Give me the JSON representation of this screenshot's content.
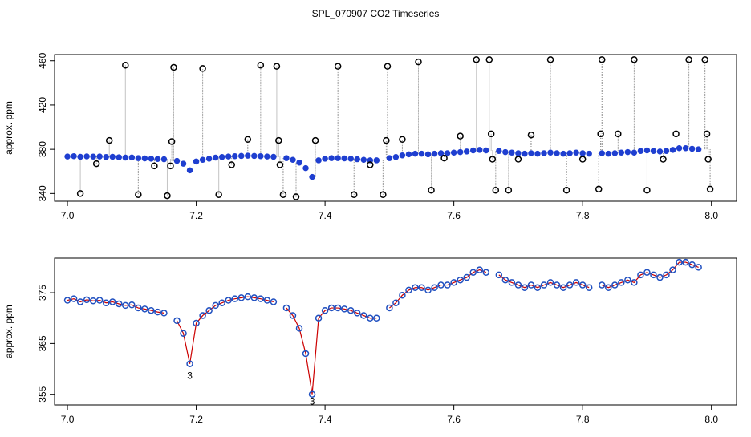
{
  "chart_data": [
    {
      "type": "scatter",
      "title": "SPL_070907  CO2 Timeseries",
      "y_label": "approx. ppm",
      "xlim": [
        6.98,
        8.039
      ],
      "ylim": [
        333,
        465.6
      ],
      "xticks": [
        {
          "value": 7.0,
          "label": "7.0"
        },
        {
          "value": 7.2,
          "label": "7.2"
        },
        {
          "value": 7.4,
          "label": "7.4"
        },
        {
          "value": 7.6,
          "label": "7.6"
        },
        {
          "value": 7.8,
          "label": "7.8"
        },
        {
          "value": 8.0,
          "label": "8.0"
        }
      ],
      "yticks": [
        340,
        380,
        420,
        460
      ],
      "series": [
        {
          "color": "#1f3fd0",
          "x": [
            7.0,
            7.01,
            7.02,
            7.03,
            7.04,
            7.05,
            7.06,
            7.07,
            7.08,
            7.09,
            7.1,
            7.11,
            7.12,
            7.13,
            7.14,
            7.15,
            7.16,
            7.17,
            7.18,
            7.19,
            7.2,
            7.21,
            7.22,
            7.23,
            7.24,
            7.25,
            7.26,
            7.27,
            7.28,
            7.29,
            7.3,
            7.31,
            7.32,
            7.33,
            7.34,
            7.35,
            7.36,
            7.37,
            7.38,
            7.39,
            7.4,
            7.41,
            7.42,
            7.43,
            7.44,
            7.45,
            7.46,
            7.47,
            7.48,
            7.49,
            7.5,
            7.51,
            7.52,
            7.53,
            7.54,
            7.55,
            7.56,
            7.57,
            7.58,
            7.59,
            7.6,
            7.61,
            7.62,
            7.63,
            7.64,
            7.65,
            7.66,
            7.67,
            7.68,
            7.69,
            7.7,
            7.71,
            7.72,
            7.73,
            7.74,
            7.75,
            7.76,
            7.77,
            7.78,
            7.79,
            7.8,
            7.81,
            7.82,
            7.83,
            7.84,
            7.85,
            7.86,
            7.87,
            7.88,
            7.89,
            7.9,
            7.91,
            7.92,
            7.93,
            7.94,
            7.95,
            7.96,
            7.97,
            7.98
          ],
          "values": [
            373.5,
            373.8,
            373.2,
            373.6,
            373.4,
            373.5,
            373.0,
            373.2,
            372.8,
            372.5,
            372.6,
            372.0,
            371.8,
            371.5,
            371.2,
            371.0,
            null,
            369.5,
            367,
            361,
            369,
            370.5,
            371.5,
            372.5,
            373,
            373.5,
            373.8,
            374,
            374.2,
            374,
            373.8,
            373.5,
            373.2,
            null,
            372,
            370.5,
            368,
            363,
            355,
            370,
            371.5,
            372,
            372,
            371.8,
            371.5,
            371,
            370.5,
            370,
            370,
            null,
            372,
            373,
            374.5,
            375.5,
            376,
            376,
            375.5,
            376,
            376.5,
            376.5,
            377,
            377.5,
            378,
            379,
            379.5,
            379,
            null,
            378.5,
            377.5,
            377,
            376.5,
            376,
            376.5,
            376,
            376.5,
            377,
            376.5,
            376,
            376.5,
            377,
            376.5,
            376,
            null,
            376.5,
            376,
            376.5,
            377,
            377.5,
            377,
            378.5,
            379,
            378.5,
            378,
            378.5,
            379.5,
            381,
            381,
            380.5,
            380
          ]
        },
        {
          "color": "#000000",
          "x": [
            7.02,
            7.045,
            7.065,
            7.09,
            7.11,
            7.135,
            7.155,
            7.16,
            7.162,
            7.165,
            7.21,
            7.235,
            7.255,
            7.28,
            7.3,
            7.325,
            7.328,
            7.33,
            7.335,
            7.355,
            7.385,
            7.42,
            7.445,
            7.47,
            7.49,
            7.495,
            7.497,
            7.52,
            7.545,
            7.565,
            7.585,
            7.61,
            7.635,
            7.655,
            7.658,
            7.66,
            7.665,
            7.685,
            7.7,
            7.72,
            7.75,
            7.775,
            7.8,
            7.825,
            7.828,
            7.83,
            7.855,
            7.88,
            7.9,
            7.925,
            7.945,
            7.965,
            7.99,
            7.993,
            7.995,
            7.998
          ],
          "values": [
            340,
            367,
            388,
            456,
            339,
            365,
            338,
            365,
            387,
            454,
            453,
            339,
            366,
            389,
            456,
            455,
            388,
            366,
            339,
            337,
            388,
            455,
            339,
            366,
            339,
            388,
            455,
            389,
            459,
            343,
            372,
            392,
            461,
            461,
            394,
            371,
            343,
            343,
            371,
            393,
            461,
            343,
            371,
            344,
            394,
            461,
            394,
            461,
            343,
            371,
            394,
            461,
            461,
            394,
            371,
            344
          ]
        }
      ]
    },
    {
      "type": "line",
      "y_label": "approx. ppm",
      "xlim": [
        6.98,
        8.039
      ],
      "ylim": [
        352.9,
        381.8
      ],
      "xticks": [
        {
          "value": 7.0,
          "label": "7.0"
        },
        {
          "value": 7.2,
          "label": "7.2"
        },
        {
          "value": 7.4,
          "label": "7.4"
        },
        {
          "value": 7.6,
          "label": "7.6"
        },
        {
          "value": 7.8,
          "label": "7.8"
        },
        {
          "value": 8.0,
          "label": "8.0"
        }
      ],
      "yticks": [
        355,
        365,
        375
      ],
      "series": [
        {
          "color": "#2050c0",
          "line_color": "#cc0000",
          "x": [
            7.0,
            7.01,
            7.02,
            7.03,
            7.04,
            7.05,
            7.06,
            7.07,
            7.08,
            7.09,
            7.1,
            7.11,
            7.12,
            7.13,
            7.14,
            7.15,
            7.16,
            7.17,
            7.18,
            7.19,
            7.2,
            7.21,
            7.22,
            7.23,
            7.24,
            7.25,
            7.26,
            7.27,
            7.28,
            7.29,
            7.3,
            7.31,
            7.32,
            7.33,
            7.34,
            7.35,
            7.36,
            7.37,
            7.38,
            7.39,
            7.4,
            7.41,
            7.42,
            7.43,
            7.44,
            7.45,
            7.46,
            7.47,
            7.48,
            7.49,
            7.5,
            7.51,
            7.52,
            7.53,
            7.54,
            7.55,
            7.56,
            7.57,
            7.58,
            7.59,
            7.6,
            7.61,
            7.62,
            7.63,
            7.64,
            7.65,
            7.66,
            7.67,
            7.68,
            7.69,
            7.7,
            7.71,
            7.72,
            7.73,
            7.74,
            7.75,
            7.76,
            7.77,
            7.78,
            7.79,
            7.8,
            7.81,
            7.82,
            7.83,
            7.84,
            7.85,
            7.86,
            7.87,
            7.88,
            7.89,
            7.9,
            7.91,
            7.92,
            7.93,
            7.94,
            7.95,
            7.96,
            7.97,
            7.98
          ],
          "values": [
            373.5,
            373.8,
            373.2,
            373.6,
            373.4,
            373.5,
            373.0,
            373.2,
            372.8,
            372.5,
            372.6,
            372.0,
            371.8,
            371.5,
            371.2,
            371.0,
            null,
            369.5,
            367,
            361,
            369,
            370.5,
            371.5,
            372.5,
            373,
            373.5,
            373.8,
            374,
            374.2,
            374,
            373.8,
            373.5,
            373.2,
            null,
            372,
            370.5,
            368,
            363,
            355,
            370,
            371.5,
            372,
            372,
            371.8,
            371.5,
            371,
            370.5,
            370,
            370,
            null,
            372,
            373,
            374.5,
            375.5,
            376,
            376,
            375.5,
            376,
            376.5,
            376.5,
            377,
            377.5,
            378,
            379,
            379.5,
            379,
            null,
            378.5,
            377.5,
            377,
            376.5,
            376,
            376.5,
            376,
            376.5,
            377,
            376.5,
            376,
            376.5,
            377,
            376.5,
            376,
            null,
            376.5,
            376,
            376.5,
            377,
            377.5,
            377,
            378.5,
            379,
            378.5,
            378,
            378.5,
            379.5,
            381,
            381,
            380.5,
            380
          ]
        }
      ],
      "annotations": [
        {
          "text": "3",
          "x": 7.19,
          "y": 358.5
        },
        {
          "text": "3",
          "x": 7.38,
          "y": 353.5
        }
      ]
    }
  ]
}
